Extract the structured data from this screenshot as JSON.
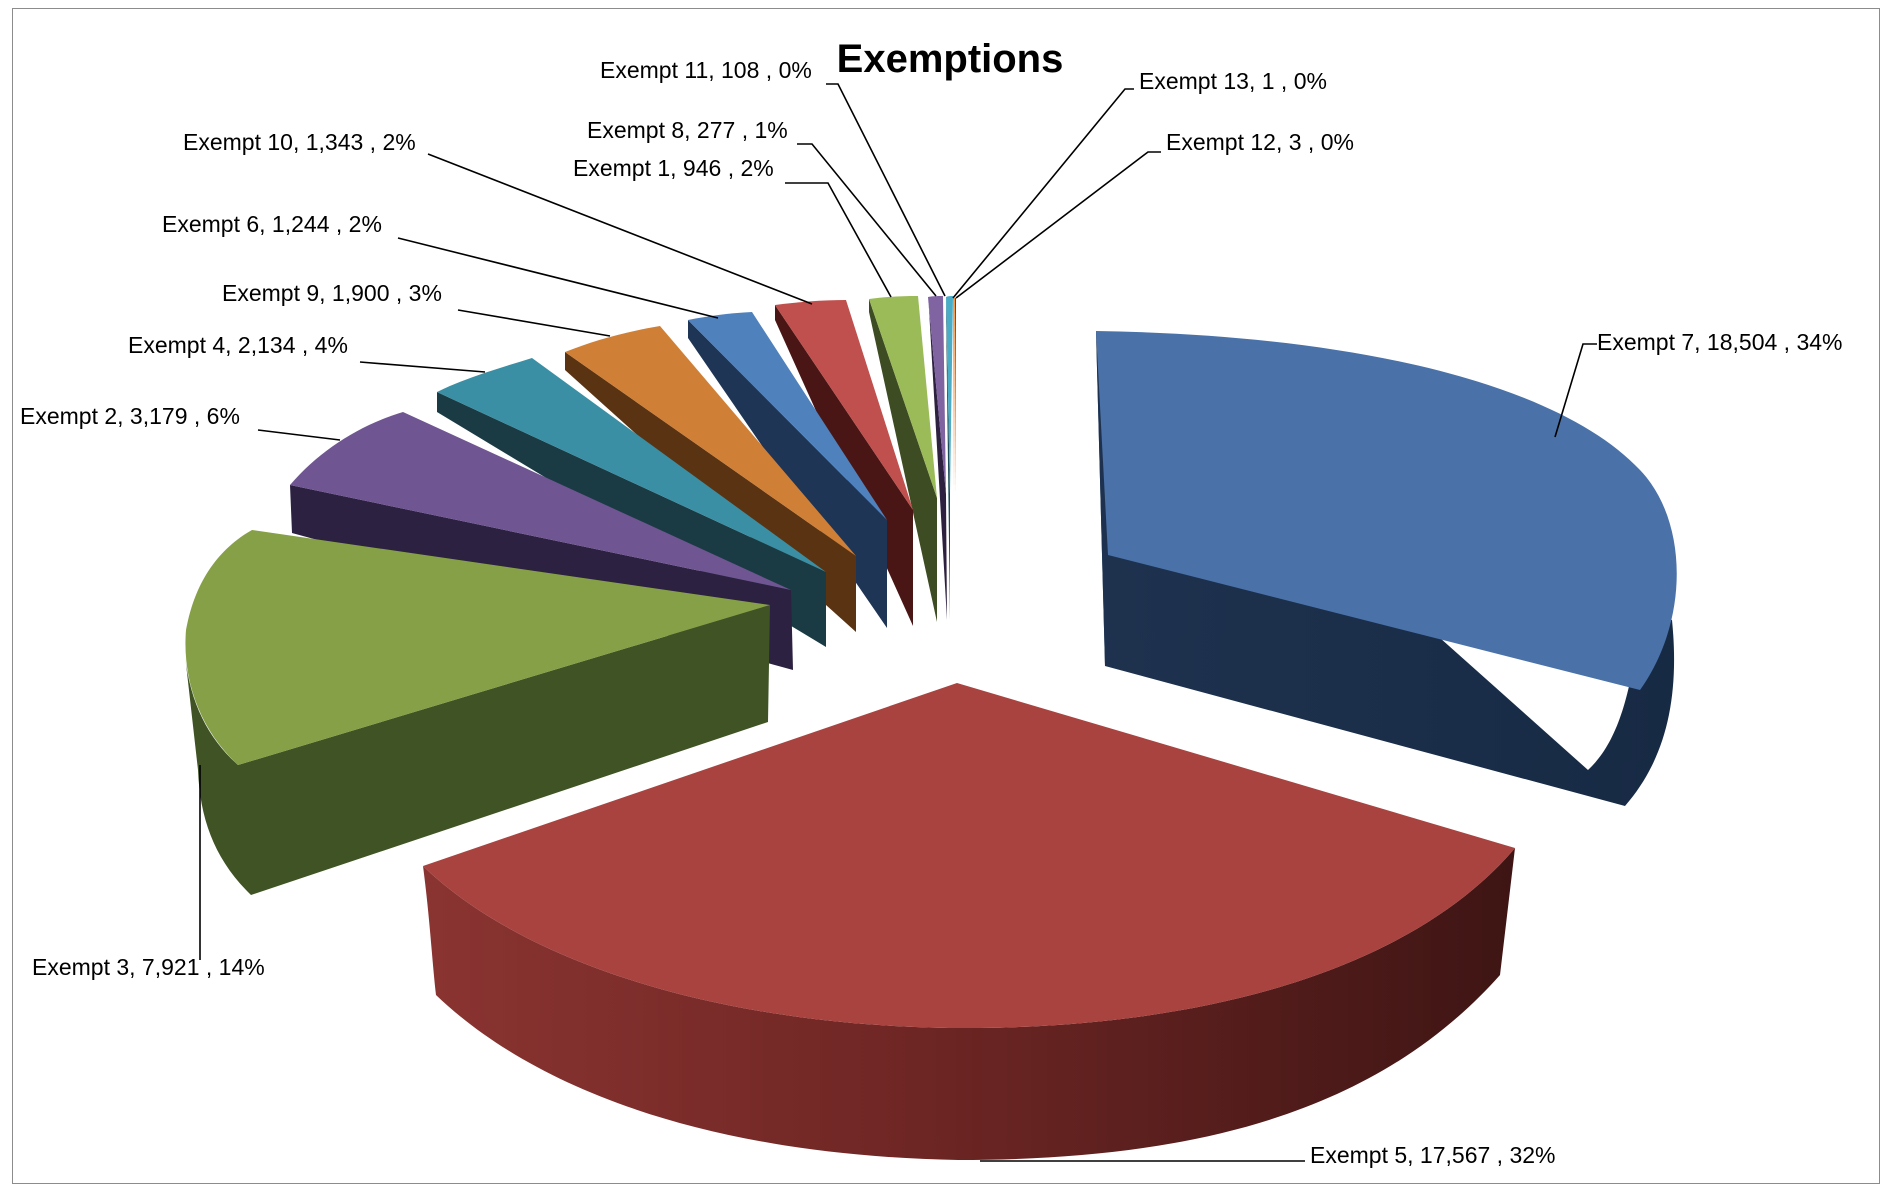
{
  "chart_data": {
    "type": "pie",
    "title": "Exemptions",
    "slices": [
      {
        "label": "Exempt 7",
        "value": 18504,
        "value_text": "18,504",
        "percent_text": "34%",
        "color": "#4a72a8"
      },
      {
        "label": "Exempt 5",
        "value": 17567,
        "value_text": "17,567",
        "percent_text": "32%",
        "color": "#a84340"
      },
      {
        "label": "Exempt 3",
        "value": 7921,
        "value_text": "7,921",
        "percent_text": "14%",
        "color": "#86a047"
      },
      {
        "label": "Exempt 2",
        "value": 3179,
        "value_text": "3,179",
        "percent_text": "6%",
        "color": "#6f5591"
      },
      {
        "label": "Exempt 4",
        "value": 2134,
        "value_text": "2,134",
        "percent_text": "4%",
        "color": "#3a8fa4"
      },
      {
        "label": "Exempt 9",
        "value": 1900,
        "value_text": "1,900",
        "percent_text": "3%",
        "color": "#d07f36"
      },
      {
        "label": "Exempt 6",
        "value": 1244,
        "value_text": "1,244",
        "percent_text": "2%",
        "color": "#4f81bd"
      },
      {
        "label": "Exempt 10",
        "value": 1343,
        "value_text": "1,343",
        "percent_text": "2%",
        "color": "#c0504d"
      },
      {
        "label": "Exempt 1",
        "value": 946,
        "value_text": "946",
        "percent_text": "2%",
        "color": "#9bbb59"
      },
      {
        "label": "Exempt 8",
        "value": 277,
        "value_text": "277",
        "percent_text": "1%",
        "color": "#8064a2"
      },
      {
        "label": "Exempt 11",
        "value": 108,
        "value_text": "108",
        "percent_text": "0%",
        "color": "#4bacc6"
      },
      {
        "label": "Exempt 13",
        "value": 1,
        "value_text": "1",
        "percent_text": "0%",
        "color": "#f79646"
      },
      {
        "label": "Exempt 12",
        "value": 3,
        "value_text": "3",
        "percent_text": "0%",
        "color": "#2c4d75"
      }
    ],
    "exploded": true,
    "style": "3d",
    "legend": "none"
  }
}
